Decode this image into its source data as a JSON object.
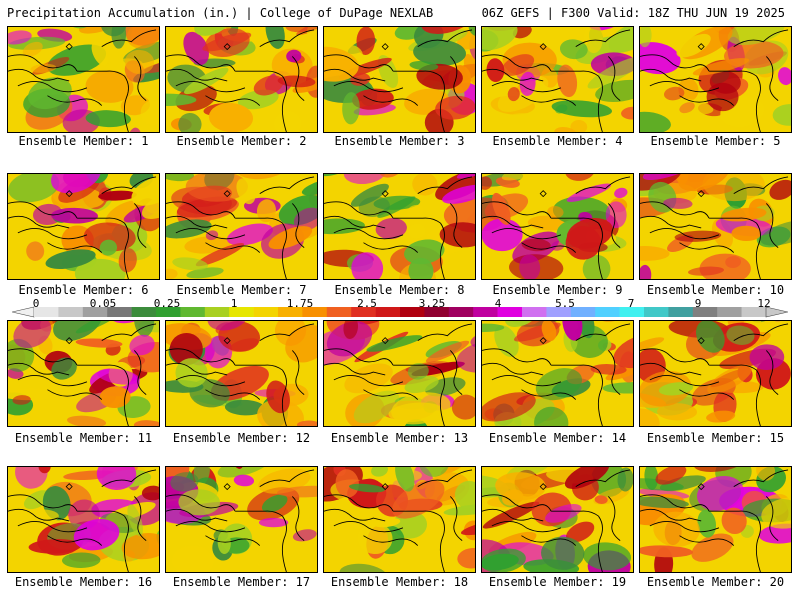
{
  "header": {
    "left_title": "Precipitation Accumulation (in.) | College of DuPage NEXLAB",
    "right_title": "06Z GEFS | F300 Valid: 18Z THU JUN 19 2025"
  },
  "colorbar": {
    "labels": [
      "0",
      "0.05",
      "0.25",
      "1",
      "1.75",
      "2.5",
      "3.25",
      "4",
      "5.5",
      "7",
      "9",
      "12"
    ],
    "colors": [
      "#e6e6e6",
      "#c8c8c8",
      "#a0a0a0",
      "#787878",
      "#3c8c3c",
      "#30a030",
      "#60b830",
      "#a8d020",
      "#e6e600",
      "#f3d400",
      "#f8b000",
      "#f89000",
      "#f06020",
      "#e03020",
      "#d01818",
      "#b00010",
      "#900030",
      "#a00060",
      "#c000a0",
      "#e000e0",
      "#d070f0",
      "#a0a0ff",
      "#70b0ff",
      "#50d0ff",
      "#40f0f0",
      "#40c8c8",
      "#40a0a0",
      "#808080",
      "#a0a0a0",
      "#c8c8c8"
    ]
  },
  "members": [
    {
      "label": "Ensemble Member: 1"
    },
    {
      "label": "Ensemble Member: 2"
    },
    {
      "label": "Ensemble Member: 3"
    },
    {
      "label": "Ensemble Member: 4"
    },
    {
      "label": "Ensemble Member: 5"
    },
    {
      "label": "Ensemble Member: 6"
    },
    {
      "label": "Ensemble Member: 7"
    },
    {
      "label": "Ensemble Member: 8"
    },
    {
      "label": "Ensemble Member: 9"
    },
    {
      "label": "Ensemble Member: 10"
    },
    {
      "label": "Ensemble Member: 11"
    },
    {
      "label": "Ensemble Member: 12"
    },
    {
      "label": "Ensemble Member: 13"
    },
    {
      "label": "Ensemble Member: 14"
    },
    {
      "label": "Ensemble Member: 15"
    },
    {
      "label": "Ensemble Member: 16"
    },
    {
      "label": "Ensemble Member: 17"
    },
    {
      "label": "Ensemble Member: 18"
    },
    {
      "label": "Ensemble Member: 19"
    },
    {
      "label": "Ensemble Member: 20"
    }
  ]
}
